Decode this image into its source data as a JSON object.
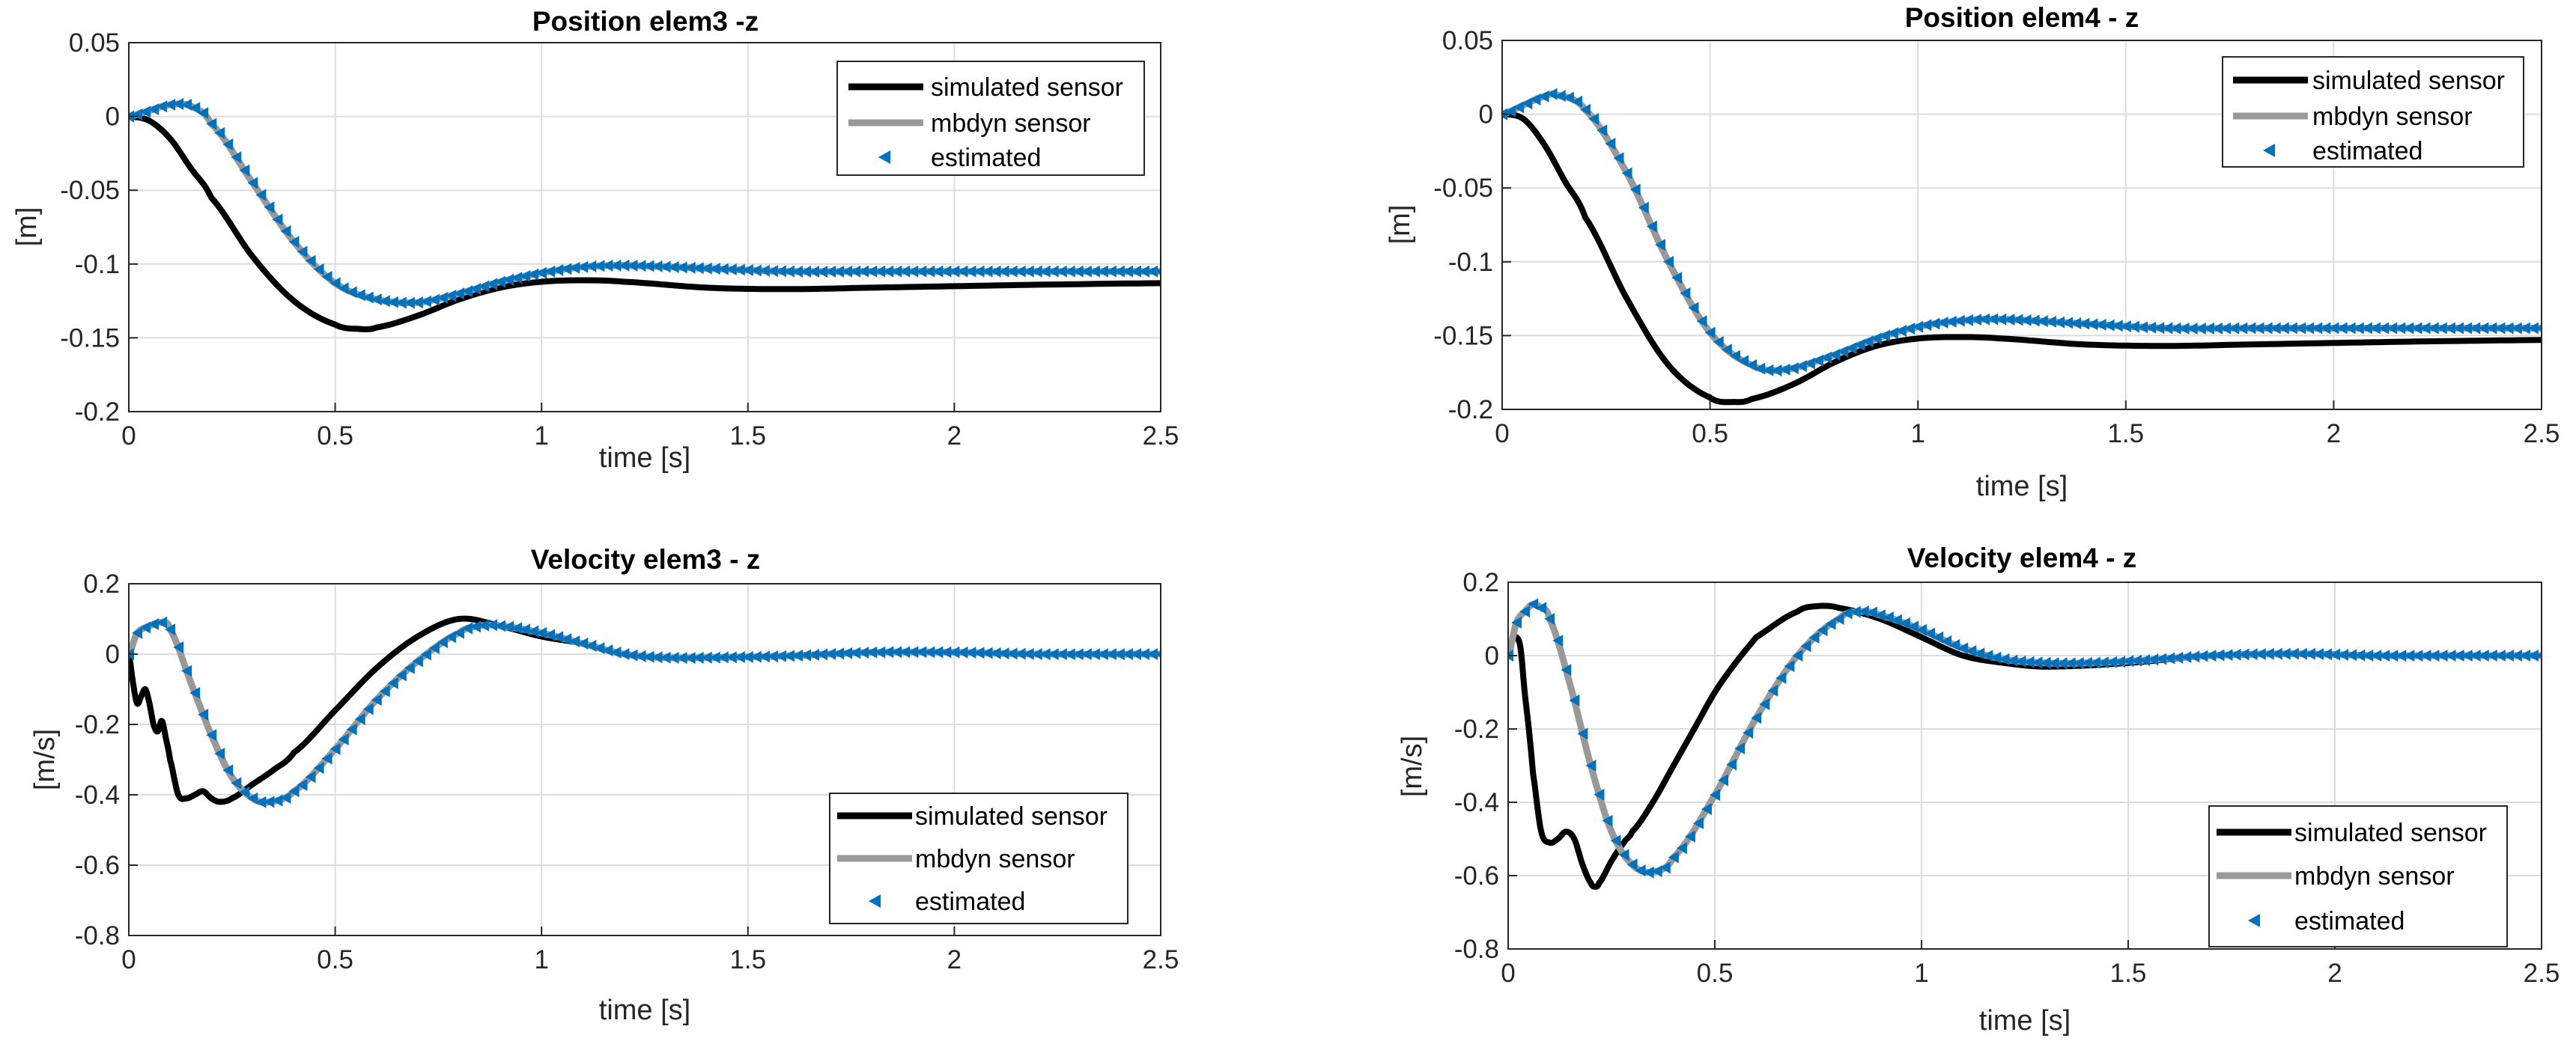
{
  "colors": {
    "simulated": "#000000",
    "mbdyn": "#999999",
    "estimated": "#0072BD"
  },
  "chart_data": [
    {
      "type": "line",
      "title": "Position elem3 -z",
      "xlabel": "time [s]",
      "ylabel": "[m]",
      "xlim": [
        0,
        2.5
      ],
      "ylim": [
        -0.2,
        0.05
      ],
      "xticks": [
        0,
        0.5,
        1,
        1.5,
        2,
        2.5
      ],
      "xtick_labels": [
        "0",
        "0.5",
        "1",
        "1.5",
        "2",
        "2.5"
      ],
      "yticks": [
        0.05,
        0,
        -0.05,
        -0.1,
        -0.15,
        -0.2
      ],
      "ytick_labels": [
        "0.05",
        "0",
        "-0.05",
        "-0.1",
        "-0.15",
        "-0.2"
      ],
      "grid": true,
      "legend_location": "top-right",
      "series": [
        {
          "name": "simulated sensor",
          "style": "line",
          "x": [
            0,
            0.05,
            0.1,
            0.15,
            0.2,
            0.3,
            0.4,
            0.5,
            0.56,
            0.6,
            0.7,
            0.8,
            0.9,
            1.0,
            1.1,
            1.2,
            1.4,
            1.6,
            1.8,
            2.0,
            2.2,
            2.5
          ],
          "y": [
            0,
            -0.003,
            -0.015,
            -0.035,
            -0.055,
            -0.095,
            -0.125,
            -0.141,
            -0.144,
            -0.143,
            -0.135,
            -0.124,
            -0.116,
            -0.112,
            -0.111,
            -0.112,
            -0.116,
            -0.117,
            -0.116,
            -0.115,
            -0.114,
            -0.113
          ]
        },
        {
          "name": "mbdyn sensor",
          "style": "line",
          "x": [
            0,
            0.05,
            0.1,
            0.15,
            0.2,
            0.3,
            0.4,
            0.5,
            0.6,
            0.7,
            0.8,
            0.9,
            1.0,
            1.1,
            1.2,
            1.4,
            1.6,
            1.8,
            2.0,
            2.2,
            2.5
          ],
          "y": [
            0,
            0.004,
            0.008,
            0.007,
            -0.005,
            -0.045,
            -0.085,
            -0.113,
            -0.124,
            -0.126,
            -0.12,
            -0.112,
            -0.106,
            -0.102,
            -0.101,
            -0.103,
            -0.105,
            -0.105,
            -0.105,
            -0.105,
            -0.105
          ]
        },
        {
          "name": "estimated",
          "style": "marker",
          "x": [
            0,
            0.05,
            0.1,
            0.15,
            0.2,
            0.3,
            0.4,
            0.5,
            0.6,
            0.7,
            0.8,
            0.9,
            1.0,
            1.1,
            1.2,
            1.4,
            1.6,
            1.8,
            2.0,
            2.2,
            2.5
          ],
          "y": [
            0,
            0.004,
            0.008,
            0.007,
            -0.005,
            -0.045,
            -0.085,
            -0.113,
            -0.124,
            -0.126,
            -0.12,
            -0.112,
            -0.106,
            -0.102,
            -0.101,
            -0.103,
            -0.105,
            -0.105,
            -0.105,
            -0.105,
            -0.105
          ]
        }
      ]
    },
    {
      "type": "line",
      "title": "Position elem4 - z",
      "xlabel": "time [s]",
      "ylabel": "[m]",
      "xlim": [
        0,
        2.5
      ],
      "ylim": [
        -0.2,
        0.05
      ],
      "xticks": [
        0,
        0.5,
        1,
        1.5,
        2,
        2.5
      ],
      "xtick_labels": [
        "0",
        "0.5",
        "1",
        "1.5",
        "2",
        "2.5"
      ],
      "yticks": [
        0.05,
        0,
        -0.05,
        -0.1,
        -0.15,
        -0.2
      ],
      "ytick_labels": [
        "0.05",
        "0",
        "-0.05",
        "-0.1",
        "-0.15",
        "-0.2"
      ],
      "grid": true,
      "legend_location": "top-right",
      "series": [
        {
          "name": "simulated sensor",
          "style": "line",
          "x": [
            0,
            0.05,
            0.1,
            0.15,
            0.2,
            0.3,
            0.4,
            0.5,
            0.56,
            0.6,
            0.7,
            0.8,
            0.9,
            1.0,
            1.1,
            1.2,
            1.4,
            1.6,
            1.8,
            2.0,
            2.2,
            2.5
          ],
          "y": [
            0,
            -0.003,
            -0.02,
            -0.045,
            -0.07,
            -0.125,
            -0.17,
            -0.192,
            -0.195,
            -0.193,
            -0.183,
            -0.168,
            -0.157,
            -0.152,
            -0.151,
            -0.152,
            -0.156,
            -0.157,
            -0.156,
            -0.155,
            -0.154,
            -0.153
          ]
        },
        {
          "name": "mbdyn sensor",
          "style": "line",
          "x": [
            0,
            0.05,
            0.1,
            0.13,
            0.2,
            0.3,
            0.4,
            0.5,
            0.6,
            0.68,
            0.8,
            0.9,
            1.0,
            1.1,
            1.2,
            1.4,
            1.6,
            1.8,
            2.0,
            2.2,
            2.5
          ],
          "y": [
            0,
            0.006,
            0.012,
            0.013,
            0.003,
            -0.04,
            -0.1,
            -0.148,
            -0.17,
            -0.173,
            -0.163,
            -0.152,
            -0.144,
            -0.14,
            -0.139,
            -0.142,
            -0.145,
            -0.145,
            -0.145,
            -0.145,
            -0.145
          ]
        },
        {
          "name": "estimated",
          "style": "marker",
          "x": [
            0,
            0.05,
            0.1,
            0.13,
            0.2,
            0.3,
            0.4,
            0.5,
            0.6,
            0.68,
            0.8,
            0.9,
            1.0,
            1.1,
            1.2,
            1.4,
            1.6,
            1.8,
            2.0,
            2.2,
            2.5
          ],
          "y": [
            0,
            0.006,
            0.012,
            0.013,
            0.003,
            -0.04,
            -0.1,
            -0.148,
            -0.17,
            -0.173,
            -0.163,
            -0.152,
            -0.144,
            -0.14,
            -0.139,
            -0.142,
            -0.145,
            -0.145,
            -0.145,
            -0.145,
            -0.145
          ]
        }
      ]
    },
    {
      "type": "line",
      "title": "Velocity elem3 - z",
      "xlabel": "time [s]",
      "ylabel": "[m/s]",
      "xlim": [
        0,
        2.5
      ],
      "ylim": [
        -0.8,
        0.2
      ],
      "xticks": [
        0,
        0.5,
        1,
        1.5,
        2,
        2.5
      ],
      "xtick_labels": [
        "0",
        "0.5",
        "1",
        "1.5",
        "2",
        "2.5"
      ],
      "yticks": [
        0.2,
        0,
        -0.2,
        -0.4,
        -0.6,
        -0.8
      ],
      "ytick_labels": [
        "0.2",
        "0",
        "-0.2",
        "-0.4",
        "-0.6",
        "-0.8"
      ],
      "grid": true,
      "legend_location": "bottom-right",
      "series": [
        {
          "name": "simulated sensor",
          "style": "line",
          "x": [
            0,
            0.01,
            0.02,
            0.03,
            0.04,
            0.05,
            0.06,
            0.07,
            0.08,
            0.09,
            0.1,
            0.12,
            0.14,
            0.16,
            0.18,
            0.2,
            0.22,
            0.25,
            0.3,
            0.35,
            0.4,
            0.5,
            0.6,
            0.7,
            0.8,
            0.9,
            1.0,
            1.1,
            1.2,
            1.3,
            1.4,
            1.6,
            1.8,
            2.0,
            2.2,
            2.5
          ],
          "y": [
            0,
            -0.08,
            -0.14,
            -0.12,
            -0.1,
            -0.14,
            -0.2,
            -0.22,
            -0.19,
            -0.24,
            -0.3,
            -0.4,
            -0.41,
            -0.4,
            -0.39,
            -0.41,
            -0.42,
            -0.41,
            -0.37,
            -0.33,
            -0.28,
            -0.16,
            -0.04,
            0.05,
            0.1,
            0.08,
            0.05,
            0.03,
            0.0,
            -0.01,
            -0.01,
            -0.005,
            0.005,
            0.005,
            0.0,
            0.0
          ]
        },
        {
          "name": "mbdyn sensor",
          "style": "line",
          "x": [
            0,
            0.02,
            0.05,
            0.08,
            0.1,
            0.15,
            0.2,
            0.25,
            0.3,
            0.34,
            0.4,
            0.5,
            0.6,
            0.7,
            0.8,
            0.85,
            0.9,
            1.0,
            1.1,
            1.2,
            1.3,
            1.4,
            1.6,
            1.8,
            2.0,
            2.2,
            2.5
          ],
          "y": [
            0,
            0.06,
            0.08,
            0.09,
            0.07,
            -0.08,
            -0.23,
            -0.35,
            -0.41,
            -0.42,
            -0.39,
            -0.27,
            -0.13,
            -0.02,
            0.06,
            0.08,
            0.08,
            0.06,
            0.03,
            0.0,
            -0.01,
            -0.01,
            -0.005,
            0.005,
            0.005,
            0.0,
            0.0
          ]
        },
        {
          "name": "estimated",
          "style": "marker",
          "x": [
            0,
            0.02,
            0.05,
            0.08,
            0.1,
            0.15,
            0.2,
            0.25,
            0.3,
            0.34,
            0.4,
            0.5,
            0.6,
            0.7,
            0.8,
            0.85,
            0.9,
            1.0,
            1.1,
            1.2,
            1.3,
            1.4,
            1.6,
            1.8,
            2.0,
            2.2,
            2.5
          ],
          "y": [
            0,
            0.06,
            0.08,
            0.09,
            0.07,
            -0.08,
            -0.23,
            -0.35,
            -0.41,
            -0.42,
            -0.39,
            -0.27,
            -0.13,
            -0.02,
            0.06,
            0.08,
            0.08,
            0.06,
            0.03,
            0.0,
            -0.01,
            -0.01,
            -0.005,
            0.005,
            0.005,
            0.0,
            0.0
          ]
        }
      ]
    },
    {
      "type": "line",
      "title": "Velocity elem4 - z",
      "xlabel": "time [s]",
      "ylabel": "[m/s]",
      "xlim": [
        0,
        2.5
      ],
      "ylim": [
        -0.8,
        0.2
      ],
      "xticks": [
        0,
        0.5,
        1,
        1.5,
        2,
        2.5
      ],
      "xtick_labels": [
        "0",
        "0.5",
        "1",
        "1.5",
        "2",
        "2.5"
      ],
      "yticks": [
        0.2,
        0,
        -0.2,
        -0.4,
        -0.6,
        -0.8
      ],
      "ytick_labels": [
        "0.2",
        "0",
        "-0.2",
        "-0.4",
        "-0.6",
        "-0.8"
      ],
      "grid": true,
      "legend_location": "bottom-right",
      "series": [
        {
          "name": "simulated sensor",
          "style": "line",
          "x": [
            0,
            0.01,
            0.02,
            0.03,
            0.04,
            0.05,
            0.06,
            0.08,
            0.1,
            0.12,
            0.14,
            0.16,
            0.18,
            0.2,
            0.21,
            0.22,
            0.25,
            0.28,
            0.3,
            0.35,
            0.4,
            0.45,
            0.5,
            0.55,
            0.6,
            0.7,
            0.75,
            0.8,
            0.9,
            1.0,
            1.1,
            1.2,
            1.3,
            1.5,
            1.7,
            1.9,
            2.1,
            2.3,
            2.5
          ],
          "y": [
            0,
            0.04,
            0.05,
            0.02,
            -0.1,
            -0.2,
            -0.32,
            -0.48,
            -0.51,
            -0.5,
            -0.48,
            -0.5,
            -0.57,
            -0.62,
            -0.63,
            -0.62,
            -0.56,
            -0.51,
            -0.48,
            -0.4,
            -0.3,
            -0.2,
            -0.1,
            -0.02,
            0.05,
            0.12,
            0.135,
            0.13,
            0.1,
            0.05,
            0.0,
            -0.02,
            -0.03,
            -0.02,
            0.0,
            0.005,
            0.0,
            0.0,
            0.0
          ]
        },
        {
          "name": "mbdyn sensor",
          "style": "line",
          "x": [
            0,
            0.02,
            0.04,
            0.06,
            0.08,
            0.1,
            0.15,
            0.2,
            0.25,
            0.3,
            0.35,
            0.4,
            0.5,
            0.6,
            0.7,
            0.8,
            0.85,
            0.9,
            1.0,
            1.1,
            1.2,
            1.3,
            1.4,
            1.5,
            1.7,
            1.9,
            2.1,
            2.3,
            2.5
          ],
          "y": [
            0,
            0.09,
            0.12,
            0.14,
            0.13,
            0.1,
            -0.08,
            -0.3,
            -0.48,
            -0.57,
            -0.59,
            -0.55,
            -0.38,
            -0.17,
            0.0,
            0.1,
            0.12,
            0.11,
            0.07,
            0.02,
            -0.01,
            -0.02,
            -0.02,
            -0.015,
            0.0,
            0.005,
            0.0,
            0.0,
            0.0
          ]
        },
        {
          "name": "estimated",
          "style": "marker",
          "x": [
            0,
            0.02,
            0.04,
            0.06,
            0.08,
            0.1,
            0.15,
            0.2,
            0.25,
            0.3,
            0.35,
            0.4,
            0.5,
            0.6,
            0.7,
            0.8,
            0.85,
            0.9,
            1.0,
            1.1,
            1.2,
            1.3,
            1.4,
            1.5,
            1.7,
            1.9,
            2.1,
            2.3,
            2.5
          ],
          "y": [
            0,
            0.09,
            0.12,
            0.14,
            0.13,
            0.1,
            -0.08,
            -0.3,
            -0.48,
            -0.57,
            -0.59,
            -0.55,
            -0.38,
            -0.17,
            0.0,
            0.1,
            0.12,
            0.11,
            0.07,
            0.02,
            -0.01,
            -0.02,
            -0.02,
            -0.015,
            0.0,
            0.005,
            0.0,
            0.0,
            0.0
          ]
        }
      ]
    }
  ]
}
